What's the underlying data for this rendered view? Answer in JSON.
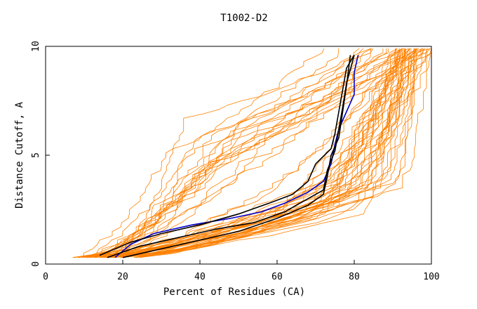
{
  "chart_data": {
    "type": "line",
    "title": "T1002-D2",
    "xlabel": "Percent of Residues (CA)",
    "ylabel": "Distance Cutoff, A",
    "xlim": [
      0,
      100
    ],
    "ylim": [
      0,
      10
    ],
    "xticks": [
      "0",
      "20",
      "40",
      "60",
      "80",
      "100"
    ],
    "yticks": [
      "0",
      "5",
      "10"
    ],
    "background_series_color": "#ff8000",
    "background_series_count": 60,
    "highlight_series": [
      {
        "name": "blue model",
        "color": "#0000cc",
        "points": [
          [
            18,
            0.3
          ],
          [
            22,
            0.9
          ],
          [
            28,
            1.4
          ],
          [
            38,
            1.8
          ],
          [
            48,
            2.1
          ],
          [
            56,
            2.4
          ],
          [
            62,
            2.8
          ],
          [
            68,
            3.3
          ],
          [
            72,
            3.8
          ],
          [
            74,
            4.6
          ],
          [
            75,
            5.5
          ],
          [
            76,
            6.2
          ],
          [
            78,
            7.0
          ],
          [
            80,
            7.8
          ],
          [
            80,
            8.8
          ],
          [
            81,
            9.6
          ]
        ]
      },
      {
        "name": "black model 1",
        "color": "#000000",
        "points": [
          [
            14,
            0.4
          ],
          [
            22,
            1.0
          ],
          [
            30,
            1.4
          ],
          [
            40,
            1.8
          ],
          [
            50,
            2.3
          ],
          [
            58,
            2.8
          ],
          [
            64,
            3.2
          ],
          [
            68,
            3.8
          ],
          [
            70,
            4.6
          ],
          [
            74,
            5.3
          ],
          [
            75,
            6.0
          ],
          [
            76,
            7.0
          ],
          [
            77,
            8.0
          ],
          [
            78,
            9.0
          ],
          [
            80,
            9.6
          ]
        ]
      },
      {
        "name": "black model 2",
        "color": "#000000",
        "points": [
          [
            16,
            0.3
          ],
          [
            24,
            0.8
          ],
          [
            34,
            1.2
          ],
          [
            44,
            1.6
          ],
          [
            54,
            1.9
          ],
          [
            62,
            2.4
          ],
          [
            67,
            2.9
          ],
          [
            72,
            3.4
          ],
          [
            73,
            4.3
          ],
          [
            75,
            5.2
          ],
          [
            76,
            6.2
          ],
          [
            77,
            7.2
          ],
          [
            78,
            8.3
          ],
          [
            80,
            9.6
          ]
        ]
      },
      {
        "name": "black model 3",
        "color": "#000000",
        "points": [
          [
            20,
            0.3
          ],
          [
            30,
            0.7
          ],
          [
            40,
            1.1
          ],
          [
            50,
            1.5
          ],
          [
            60,
            2.1
          ],
          [
            68,
            2.7
          ],
          [
            72,
            3.2
          ],
          [
            73,
            4.0
          ],
          [
            74,
            5.0
          ],
          [
            76,
            5.8
          ],
          [
            77,
            7.0
          ],
          [
            78,
            8.2
          ],
          [
            79,
            9.6
          ]
        ]
      }
    ]
  }
}
